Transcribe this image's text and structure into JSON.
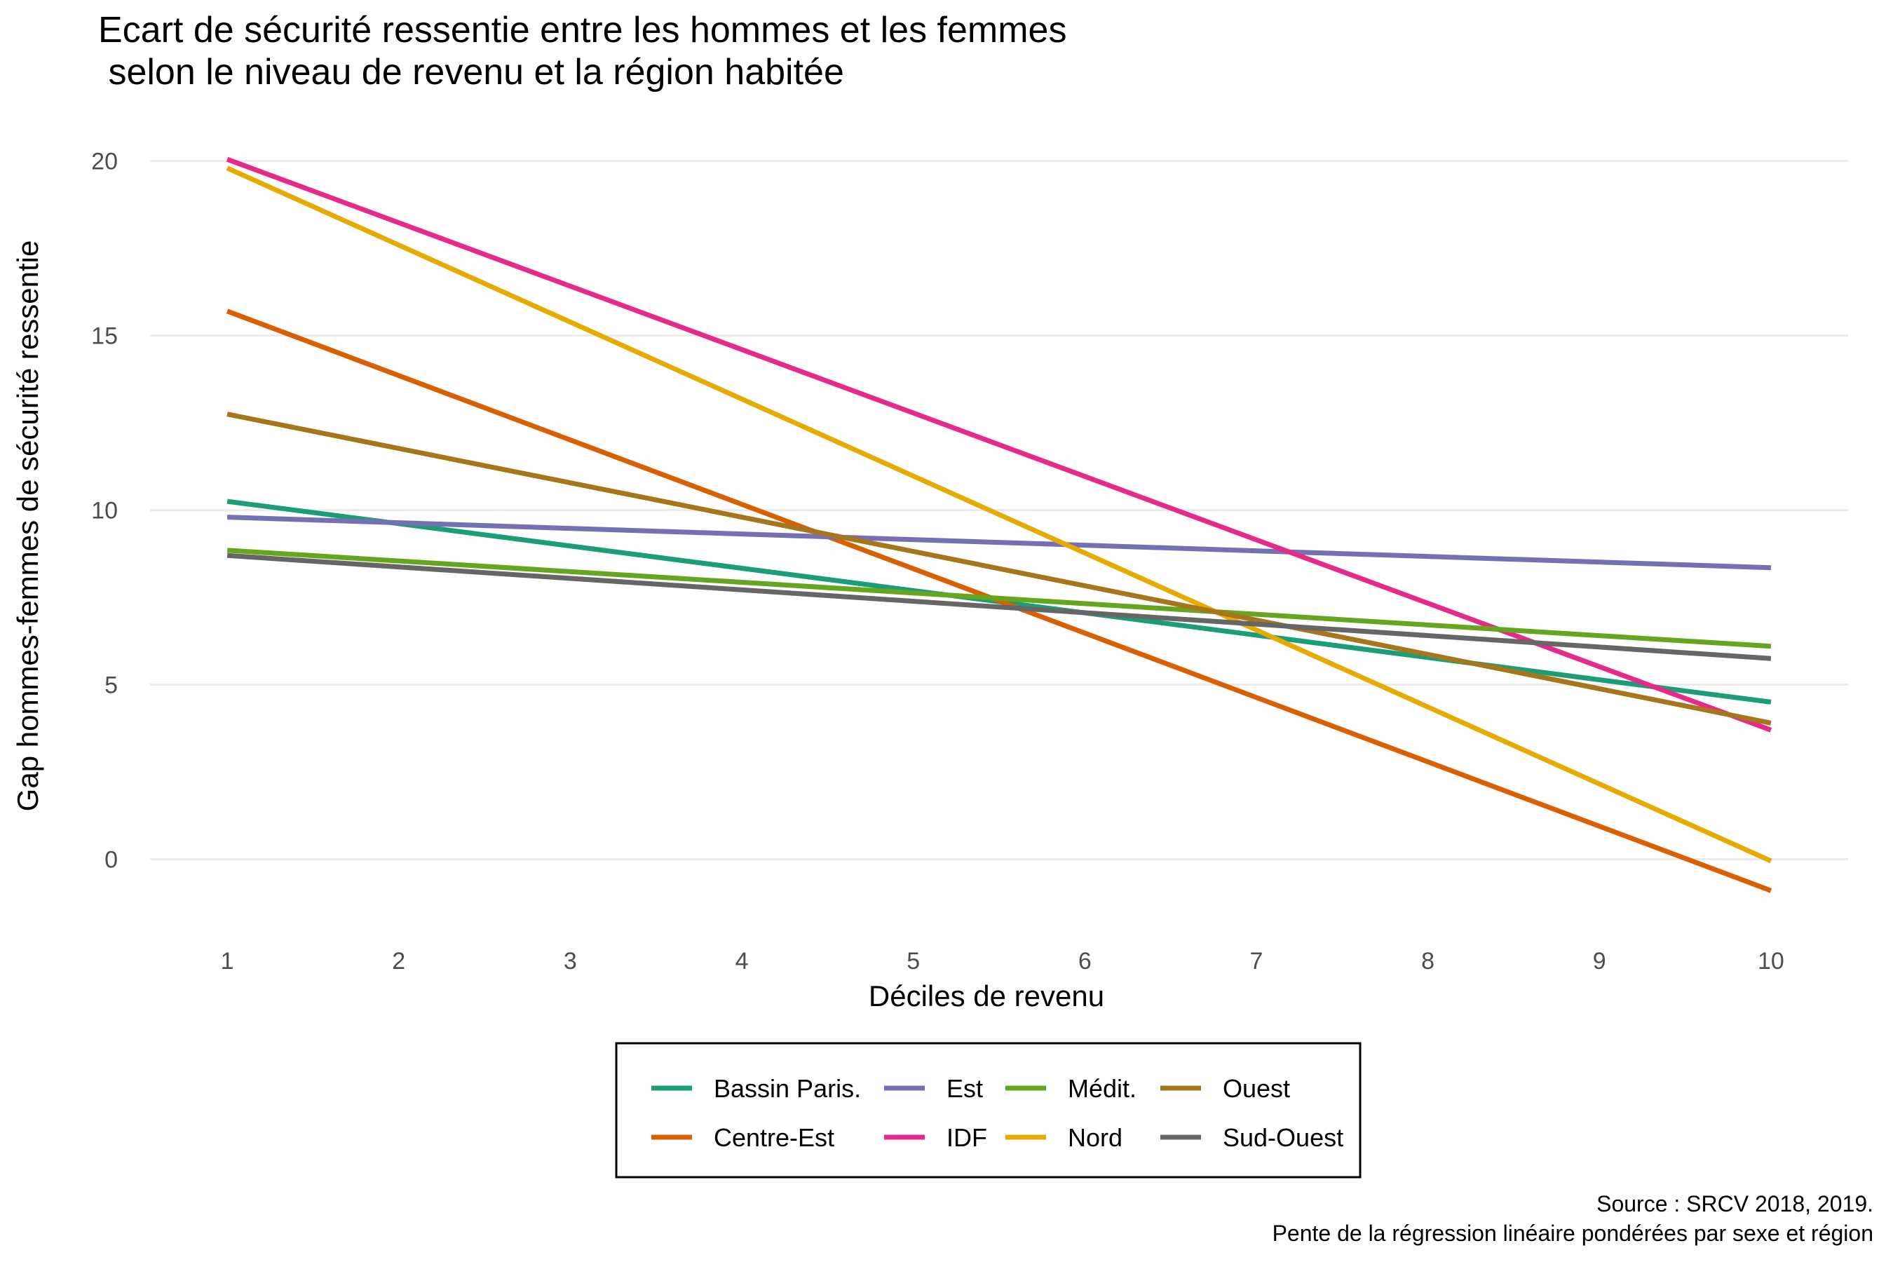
{
  "chart_data": {
    "type": "line",
    "title": "Ecart de sécurité ressentie entre les hommes et les femmes",
    "subtitle": " selon le niveau de revenu et la région habitée",
    "xlabel": "Déciles de revenu",
    "ylabel": "Gap hommes-femmes de sécurité ressentie",
    "xlim": [
      0.55,
      10.45
    ],
    "ylim": [
      -2.3,
      21.4
    ],
    "x_ticks": [
      1,
      2,
      3,
      4,
      5,
      6,
      7,
      8,
      9,
      10
    ],
    "y_ticks": [
      0,
      5,
      10,
      15,
      20
    ],
    "grid": "horizontal",
    "legend_position": "bottom",
    "caption_lines": [
      "Source : SRCV 2018, 2019.",
      "Pente de la régression linéaire pondérées par sexe et région"
    ],
    "x": [
      1,
      10
    ],
    "series": [
      {
        "name": "Bassin Paris.",
        "color": "#1b9e77",
        "values": [
          10.25,
          4.5
        ]
      },
      {
        "name": "Est",
        "color": "#7570b3",
        "values": [
          9.8,
          8.35
        ]
      },
      {
        "name": "Médit.",
        "color": "#66a61e",
        "values": [
          8.85,
          6.1
        ]
      },
      {
        "name": "Ouest",
        "color": "#a6761d",
        "values": [
          12.75,
          3.9
        ]
      },
      {
        "name": "Centre-Est",
        "color": "#d95f02",
        "values": [
          15.7,
          -0.9
        ]
      },
      {
        "name": "IDF",
        "color": "#e7298a",
        "values": [
          20.05,
          3.7
        ]
      },
      {
        "name": "Nord",
        "color": "#e6ab02",
        "values": [
          19.8,
          -0.05
        ]
      },
      {
        "name": "Sud-Ouest",
        "color": "#666666",
        "values": [
          8.7,
          5.75
        ]
      }
    ],
    "draw_order": [
      "Bassin Paris.",
      "Centre-Est",
      "Est",
      "IDF",
      "Médit.",
      "Nord",
      "Ouest",
      "Sud-Ouest"
    ]
  }
}
